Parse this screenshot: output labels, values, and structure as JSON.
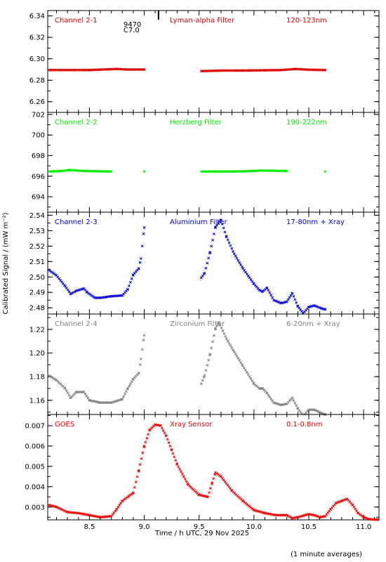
{
  "figure": {
    "ylabel": "Calibrated Signal / (mW m⁻²)",
    "xlabel": "Time / h UTC, 29 Nov 2025",
    "footnote": "(1 minute averages)",
    "flare_annotation": {
      "label_top": "9470",
      "label_bottom": "C7.0",
      "time": 9.13
    }
  },
  "chart_data": [
    {
      "type": "scatter",
      "channel": "Channel 2-1",
      "filter": "Lyman-alpha Filter",
      "band": "120-123nm",
      "color": "#dd0000",
      "xlim": [
        8.12,
        11.14
      ],
      "ylim": [
        6.25,
        6.345
      ],
      "yticks": [
        6.26,
        6.28,
        6.3,
        6.32,
        6.34
      ],
      "ytick_labels": [
        "6.26",
        "6.28",
        "6.30",
        "6.32",
        "6.34"
      ],
      "points": [
        [
          8.13,
          6.2895
        ],
        [
          8.3,
          6.2895
        ],
        [
          8.5,
          6.2895
        ],
        [
          8.75,
          6.2905
        ],
        [
          8.85,
          6.29
        ],
        [
          9.0,
          6.29
        ],
        [
          9.52,
          6.2885
        ],
        [
          9.7,
          6.289
        ],
        [
          9.9,
          6.289
        ],
        [
          10.1,
          6.2893
        ],
        [
          10.25,
          6.2895
        ],
        [
          10.38,
          6.2905
        ],
        [
          10.5,
          6.2898
        ],
        [
          10.65,
          6.2895
        ]
      ]
    },
    {
      "type": "scatter",
      "channel": "Channel 2-2",
      "filter": "Herzberg Filter",
      "band": "190-222nm",
      "color": "#00ee00",
      "xlim": [
        8.12,
        11.14
      ],
      "ylim": [
        692.5,
        702.2
      ],
      "yticks": [
        694,
        696,
        698,
        700,
        702
      ],
      "ytick_labels": [
        "694",
        "696",
        "698",
        "700",
        "702"
      ],
      "points": [
        [
          8.13,
          696.45
        ],
        [
          8.25,
          696.5
        ],
        [
          8.32,
          696.6
        ],
        [
          8.45,
          696.5
        ],
        [
          8.7,
          696.45
        ],
        [
          9.0,
          696.45
        ],
        [
          9.52,
          696.45
        ],
        [
          9.8,
          696.45
        ],
        [
          10.0,
          696.5
        ],
        [
          10.05,
          696.55
        ],
        [
          10.3,
          696.5
        ],
        [
          10.65,
          696.45
        ]
      ]
    },
    {
      "type": "scatter",
      "channel": "Channel 2-3",
      "filter": "Aluminium Filter",
      "band": "17-80nm + Xray",
      "color": "#0000dd",
      "xlim": [
        8.12,
        11.14
      ],
      "ylim": [
        2.476,
        2.542
      ],
      "yticks": [
        2.48,
        2.49,
        2.5,
        2.51,
        2.52,
        2.53,
        2.54
      ],
      "ytick_labels": [
        "2.48",
        "2.49",
        "2.50",
        "2.51",
        "2.52",
        "2.53",
        "2.54"
      ],
      "points": [
        [
          8.13,
          2.5045
        ],
        [
          8.2,
          2.501
        ],
        [
          8.28,
          2.494
        ],
        [
          8.33,
          2.489
        ],
        [
          8.38,
          2.491
        ],
        [
          8.45,
          2.4925
        ],
        [
          8.48,
          2.49
        ],
        [
          8.55,
          2.4865
        ],
        [
          8.6,
          2.4865
        ],
        [
          8.7,
          2.4875
        ],
        [
          8.8,
          2.488
        ],
        [
          8.85,
          2.492
        ],
        [
          8.9,
          2.5015
        ],
        [
          8.95,
          2.5055
        ],
        [
          8.97,
          2.512
        ],
        [
          9.0,
          2.532
        ],
        [
          9.52,
          2.4995
        ],
        [
          9.55,
          2.5025
        ],
        [
          9.6,
          2.516
        ],
        [
          9.65,
          2.5325
        ],
        [
          9.7,
          2.537
        ],
        [
          9.75,
          2.526
        ],
        [
          9.82,
          2.515
        ],
        [
          9.9,
          2.5055
        ],
        [
          10.0,
          2.4955
        ],
        [
          10.05,
          2.4915
        ],
        [
          10.08,
          2.4905
        ],
        [
          10.12,
          2.493
        ],
        [
          10.18,
          2.485
        ],
        [
          10.25,
          2.483
        ],
        [
          10.3,
          2.484
        ],
        [
          10.35,
          2.4895
        ],
        [
          10.4,
          2.481
        ],
        [
          10.45,
          2.4765
        ],
        [
          10.5,
          2.4805
        ],
        [
          10.55,
          2.4815
        ],
        [
          10.62,
          2.4795
        ],
        [
          10.65,
          2.479
        ]
      ]
    },
    {
      "type": "scatter",
      "channel": "Channel 2-4",
      "filter": "Zirconium Filter",
      "band": "6-20nm + Xray",
      "color": "#808080",
      "xlim": [
        8.12,
        11.14
      ],
      "ylim": [
        1.148,
        1.233
      ],
      "yticks": [
        1.16,
        1.18,
        1.2,
        1.22
      ],
      "ytick_labels": [
        "1.16",
        "1.18",
        "1.20",
        "1.22"
      ],
      "points": [
        [
          8.13,
          1.181
        ],
        [
          8.2,
          1.177
        ],
        [
          8.28,
          1.17
        ],
        [
          8.33,
          1.162
        ],
        [
          8.38,
          1.167
        ],
        [
          8.45,
          1.167
        ],
        [
          8.5,
          1.16
        ],
        [
          8.6,
          1.158
        ],
        [
          8.7,
          1.158
        ],
        [
          8.8,
          1.161
        ],
        [
          8.85,
          1.17
        ],
        [
          8.9,
          1.178
        ],
        [
          8.95,
          1.183
        ],
        [
          8.97,
          1.195
        ],
        [
          9.0,
          1.215
        ],
        [
          9.52,
          1.174
        ],
        [
          9.55,
          1.181
        ],
        [
          9.6,
          1.199
        ],
        [
          9.65,
          1.221
        ],
        [
          9.68,
          1.226
        ],
        [
          9.75,
          1.212
        ],
        [
          9.82,
          1.201
        ],
        [
          9.9,
          1.189
        ],
        [
          10.0,
          1.174
        ],
        [
          10.05,
          1.17
        ],
        [
          10.08,
          1.17
        ],
        [
          10.12,
          1.166
        ],
        [
          10.18,
          1.158
        ],
        [
          10.25,
          1.156
        ],
        [
          10.3,
          1.157
        ],
        [
          10.35,
          1.162
        ],
        [
          10.4,
          1.153
        ],
        [
          10.45,
          1.147
        ],
        [
          10.5,
          1.152
        ],
        [
          10.55,
          1.152
        ],
        [
          10.62,
          1.149
        ],
        [
          10.65,
          1.148
        ]
      ]
    },
    {
      "type": "scatter",
      "channel": "GOES",
      "filter": "Xray Sensor",
      "band": "0.1-0.8nm",
      "color": "#ee0000",
      "xlim": [
        8.12,
        11.14
      ],
      "ylim": [
        0.00237,
        0.00755
      ],
      "yticks": [
        0.003,
        0.004,
        0.005,
        0.006,
        0.007
      ],
      "ytick_labels": [
        "0.003",
        "0.004",
        "0.005",
        "0.006",
        "0.007"
      ],
      "points": [
        [
          8.13,
          0.0031
        ],
        [
          8.2,
          0.003
        ],
        [
          8.3,
          0.00275
        ],
        [
          8.4,
          0.0027
        ],
        [
          8.5,
          0.0026
        ],
        [
          8.6,
          0.0025
        ],
        [
          8.7,
          0.00255
        ],
        [
          8.75,
          0.0029
        ],
        [
          8.8,
          0.0033
        ],
        [
          8.9,
          0.0037
        ],
        [
          8.95,
          0.0048
        ],
        [
          9.0,
          0.006
        ],
        [
          9.05,
          0.0068
        ],
        [
          9.1,
          0.00705
        ],
        [
          9.15,
          0.007
        ],
        [
          9.2,
          0.0065
        ],
        [
          9.25,
          0.0058
        ],
        [
          9.3,
          0.0051
        ],
        [
          9.4,
          0.0041
        ],
        [
          9.5,
          0.0036
        ],
        [
          9.58,
          0.0035
        ],
        [
          9.62,
          0.0042
        ],
        [
          9.65,
          0.0047
        ],
        [
          9.7,
          0.0045
        ],
        [
          9.8,
          0.0038
        ],
        [
          9.9,
          0.0033
        ],
        [
          10.0,
          0.00285
        ],
        [
          10.1,
          0.0027
        ],
        [
          10.2,
          0.0026
        ],
        [
          10.3,
          0.0026
        ],
        [
          10.35,
          0.00245
        ],
        [
          10.4,
          0.0025
        ],
        [
          10.5,
          0.00265
        ],
        [
          10.55,
          0.0026
        ],
        [
          10.6,
          0.0025
        ],
        [
          10.65,
          0.00255
        ],
        [
          10.7,
          0.0029
        ],
        [
          10.75,
          0.0032
        ],
        [
          10.8,
          0.0033
        ],
        [
          10.85,
          0.0034
        ],
        [
          10.9,
          0.0031
        ],
        [
          10.95,
          0.0027
        ],
        [
          11.0,
          0.0025
        ],
        [
          11.05,
          0.0024
        ],
        [
          11.13,
          0.00238
        ]
      ]
    }
  ],
  "x_axis": {
    "ticks": [
      8.5,
      9.0,
      9.5,
      10.0,
      10.5,
      11.0
    ],
    "tick_labels": [
      "8.5",
      "9.0",
      "9.5",
      "10.0",
      "10.5",
      "11.0"
    ]
  }
}
